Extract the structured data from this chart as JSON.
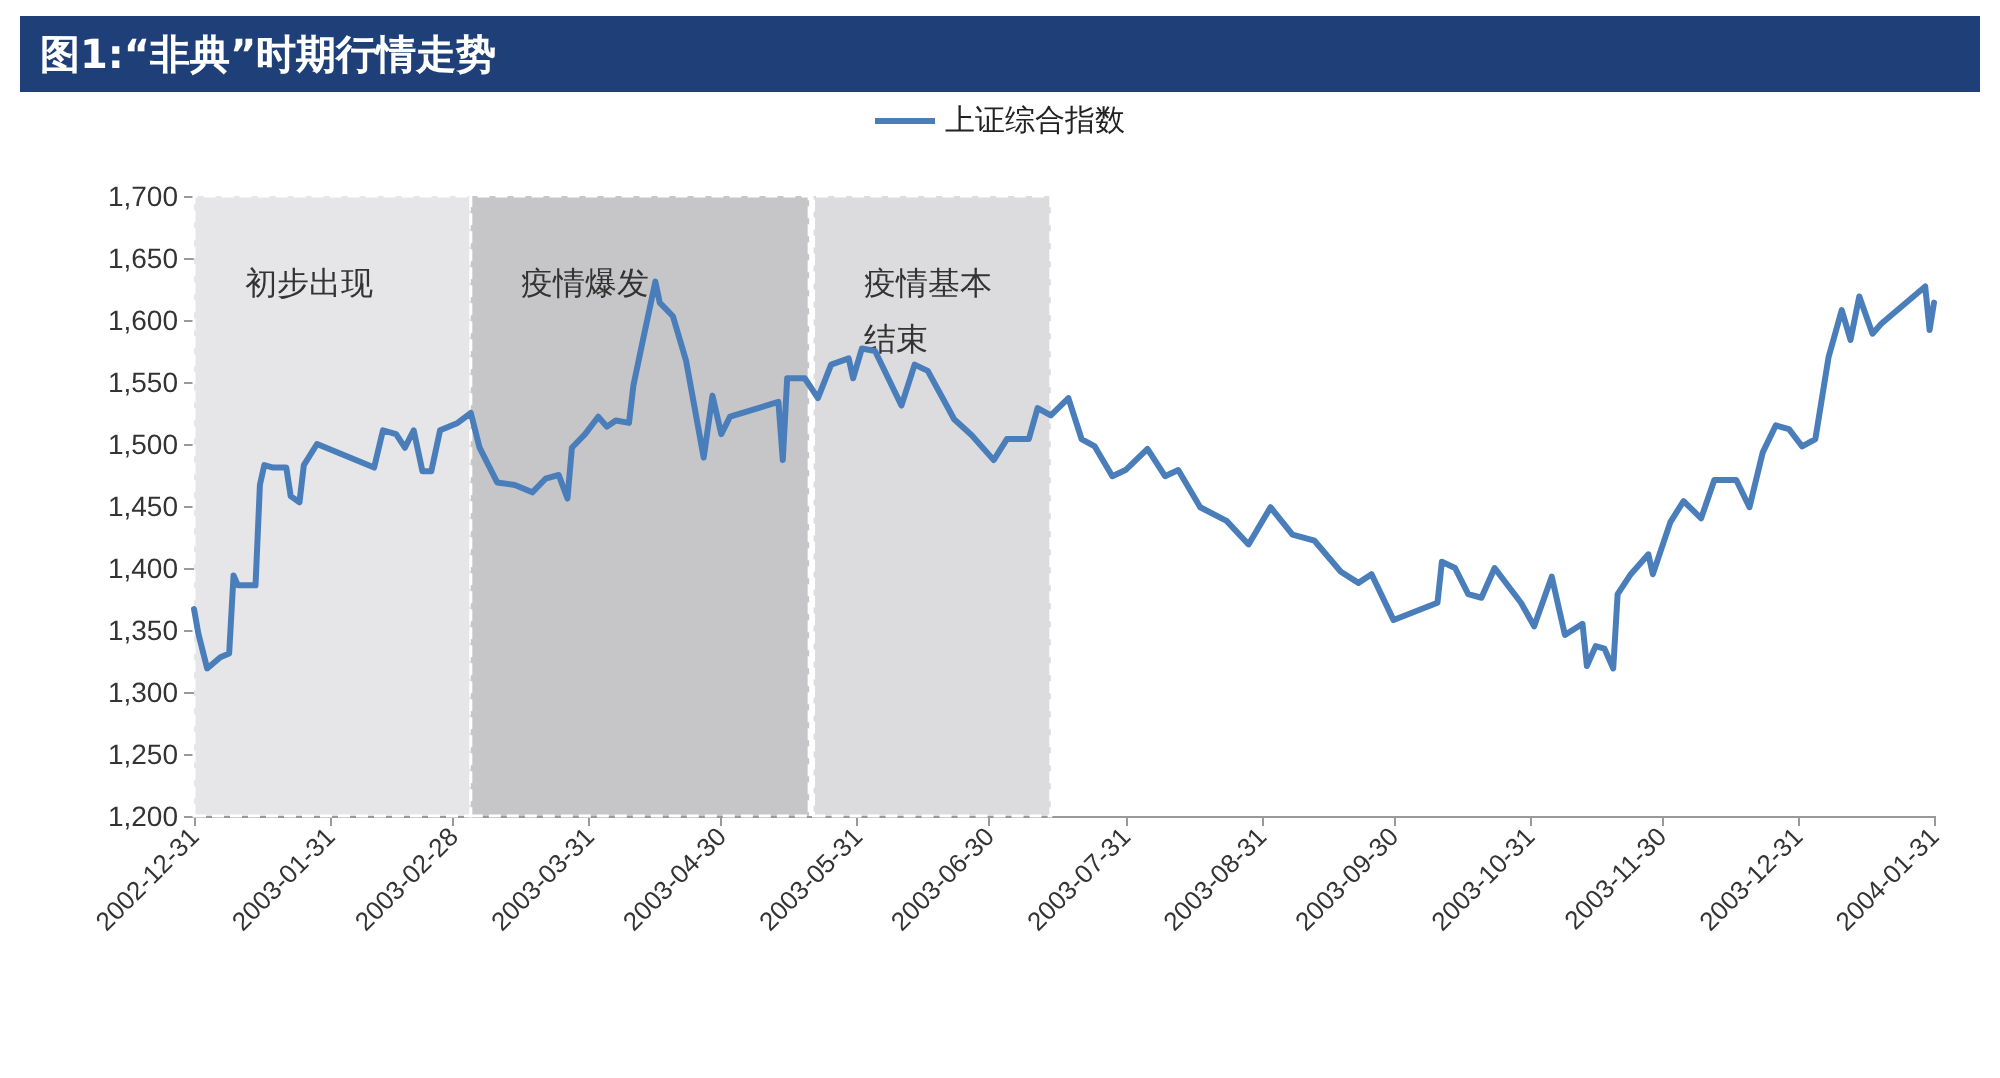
{
  "chart_data": {
    "type": "line",
    "title": "图1:“非典”时期行情走势",
    "x": [
      "2002-12-31",
      "2003-01-01",
      "2003-01-03",
      "2003-01-06",
      "2003-01-08",
      "2003-01-09",
      "2003-01-10",
      "2003-01-14",
      "2003-01-15",
      "2003-01-16",
      "2003-01-18",
      "2003-01-21",
      "2003-01-22",
      "2003-01-24",
      "2003-01-25",
      "2003-01-28",
      "2003-02-10",
      "2003-02-12",
      "2003-02-15",
      "2003-02-17",
      "2003-02-19",
      "2003-02-21",
      "2003-02-23",
      "2003-02-25",
      "2003-03-01",
      "2003-03-04",
      "2003-03-06",
      "2003-03-10",
      "2003-03-14",
      "2003-03-18",
      "2003-03-21",
      "2003-03-24",
      "2003-03-26",
      "2003-03-27",
      "2003-03-30",
      "2003-04-02",
      "2003-04-04",
      "2003-04-06",
      "2003-04-09",
      "2003-04-10",
      "2003-04-12",
      "2003-04-15",
      "2003-04-16",
      "2003-04-19",
      "2003-04-22",
      "2003-04-26",
      "2003-04-28",
      "2003-04-30",
      "2003-05-02",
      "2003-05-13",
      "2003-05-14",
      "2003-05-15",
      "2003-05-19",
      "2003-05-22",
      "2003-05-25",
      "2003-05-29",
      "2003-05-30",
      "2003-06-01",
      "2003-06-04",
      "2003-06-10",
      "2003-06-13",
      "2003-06-16",
      "2003-06-22",
      "2003-06-26",
      "2003-07-01",
      "2003-07-04",
      "2003-07-09",
      "2003-07-11",
      "2003-07-14",
      "2003-07-18",
      "2003-07-21",
      "2003-07-24",
      "2003-07-28",
      "2003-07-31",
      "2003-08-05",
      "2003-08-09",
      "2003-08-12",
      "2003-08-17",
      "2003-08-23",
      "2003-08-28",
      "2003-09-02",
      "2003-09-07",
      "2003-09-12",
      "2003-09-18",
      "2003-09-22",
      "2003-09-25",
      "2003-09-30",
      "2003-10-10",
      "2003-10-11",
      "2003-10-14",
      "2003-10-17",
      "2003-10-20",
      "2003-10-23",
      "2003-10-29",
      "2003-11-01",
      "2003-11-05",
      "2003-11-08",
      "2003-11-12",
      "2003-11-13",
      "2003-11-15",
      "2003-11-17",
      "2003-11-19",
      "2003-11-20",
      "2003-11-23",
      "2003-11-27",
      "2003-11-28",
      "2003-12-02",
      "2003-12-05",
      "2003-12-09",
      "2003-12-12",
      "2003-12-17",
      "2003-12-20",
      "2003-12-23",
      "2003-12-26",
      "2003-12-29",
      "2004-01-01",
      "2004-01-04",
      "2004-01-07",
      "2004-01-10",
      "2004-01-12",
      "2004-01-14",
      "2004-01-17",
      "2004-01-19",
      "2004-01-29",
      "2004-01-30",
      "2004-01-31"
    ],
    "series": [
      {
        "name": "上证综合指数",
        "color": "#4a7ebb",
        "values": [
          1367,
          1347,
          1319,
          1328,
          1331,
          1394,
          1386,
          1386,
          1467,
          1483,
          1481,
          1481,
          1458,
          1453,
          1483,
          1500,
          1481,
          1511,
          1508,
          1497,
          1511,
          1478,
          1478,
          1511,
          1517,
          1525,
          1497,
          1469,
          1467,
          1461,
          1472,
          1475,
          1456,
          1497,
          1508,
          1522,
          1514,
          1519,
          1517,
          1547,
          1581,
          1631,
          1614,
          1603,
          1567,
          1489,
          1539,
          1508,
          1522,
          1534,
          1487,
          1553,
          1553,
          1537,
          1564,
          1569,
          1553,
          1577,
          1575,
          1531,
          1564,
          1559,
          1520,
          1507,
          1487,
          1504,
          1504,
          1529,
          1523,
          1537,
          1504,
          1498,
          1474,
          1479,
          1496,
          1474,
          1479,
          1449,
          1438,
          1419,
          1449,
          1427,
          1422,
          1397,
          1388,
          1395,
          1358,
          1372,
          1405,
          1400,
          1379,
          1376,
          1400,
          1372,
          1353,
          1393,
          1346,
          1355,
          1321,
          1337,
          1335,
          1319,
          1379,
          1395,
          1411,
          1395,
          1437,
          1454,
          1440,
          1471,
          1471,
          1449,
          1493,
          1515,
          1512,
          1498,
          1504,
          1570,
          1608,
          1584,
          1619,
          1589,
          1597,
          1627,
          1592,
          1614
        ]
      }
    ],
    "xlim": [
      "2002-12-31",
      "2004-01-31"
    ],
    "xticks": [
      "2002-12-31",
      "2003-01-31",
      "2003-02-28",
      "2003-03-31",
      "2003-04-30",
      "2003-05-31",
      "2003-06-30",
      "2003-07-31",
      "2003-08-31",
      "2003-09-30",
      "2003-10-31",
      "2003-11-30",
      "2003-12-31",
      "2004-01-31"
    ],
    "ylim": [
      1200,
      1700
    ],
    "yticks": [
      {
        "value": 1200,
        "label": "1,200"
      },
      {
        "value": 1250,
        "label": "1,250"
      },
      {
        "value": 1300,
        "label": "1,300"
      },
      {
        "value": 1350,
        "label": "1,350"
      },
      {
        "value": 1400,
        "label": "1,400"
      },
      {
        "value": 1450,
        "label": "1,450"
      },
      {
        "value": 1500,
        "label": "1,500"
      },
      {
        "value": 1550,
        "label": "1,550"
      },
      {
        "value": 1600,
        "label": "1,600"
      },
      {
        "value": 1650,
        "label": "1,650"
      },
      {
        "value": 1700,
        "label": "1,700"
      }
    ],
    "bands": [
      {
        "axis": "x",
        "from": "2002-12-31",
        "to": "2003-03-04",
        "label": "初步出现",
        "color": "#e6e6e8"
      },
      {
        "axis": "x",
        "from": "2003-03-04",
        "to": "2003-05-20",
        "label": "疫情爆发",
        "color": "#c6c6c8"
      },
      {
        "axis": "x",
        "from": "2003-05-21",
        "to": "2003-07-14",
        "label": "疫情基本结束",
        "color": "#dcdcde"
      }
    ],
    "legend": "top",
    "grid": false,
    "marker": "none",
    "line_style": "solid"
  }
}
